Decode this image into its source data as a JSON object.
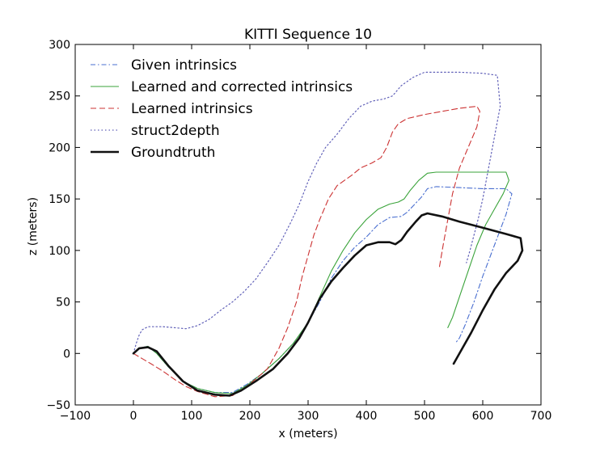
{
  "chart_data": {
    "type": "line",
    "title": "KITTI Sequence 10",
    "xlabel": "x (meters)",
    "ylabel": "z (meters)",
    "xlim": [
      -100,
      700
    ],
    "ylim": [
      -50,
      300
    ],
    "xticks": [
      -100,
      0,
      100,
      200,
      300,
      400,
      500,
      600,
      700
    ],
    "yticks": [
      -50,
      0,
      50,
      100,
      150,
      200,
      250,
      300
    ],
    "grid": false,
    "legend": "top-left",
    "series": [
      {
        "name": "Given intrinsics",
        "color": "#4a6fd0",
        "style": "dashdot",
        "width": 1.1,
        "points": [
          [
            0,
            0
          ],
          [
            10,
            5
          ],
          [
            25,
            7
          ],
          [
            40,
            0
          ],
          [
            60,
            -13
          ],
          [
            85,
            -27
          ],
          [
            110,
            -34
          ],
          [
            140,
            -38
          ],
          [
            170,
            -38
          ],
          [
            195,
            -30
          ],
          [
            220,
            -20
          ],
          [
            250,
            -5
          ],
          [
            275,
            10
          ],
          [
            300,
            30
          ],
          [
            320,
            50
          ],
          [
            340,
            73
          ],
          [
            360,
            90
          ],
          [
            380,
            103
          ],
          [
            400,
            113
          ],
          [
            420,
            125
          ],
          [
            440,
            132
          ],
          [
            460,
            133
          ],
          [
            470,
            137
          ],
          [
            480,
            143
          ],
          [
            495,
            152
          ],
          [
            505,
            160
          ],
          [
            520,
            162
          ],
          [
            560,
            161
          ],
          [
            600,
            160
          ],
          [
            640,
            160
          ],
          [
            650,
            155
          ],
          [
            640,
            135
          ],
          [
            620,
            105
          ],
          [
            600,
            75
          ],
          [
            585,
            50
          ],
          [
            570,
            28
          ],
          [
            560,
            15
          ],
          [
            553,
            10
          ]
        ]
      },
      {
        "name": "Learned and corrected intrinsics",
        "color": "#3aa33a",
        "style": "solid",
        "width": 1.1,
        "points": [
          [
            0,
            0
          ],
          [
            10,
            5
          ],
          [
            25,
            7
          ],
          [
            40,
            0
          ],
          [
            60,
            -13
          ],
          [
            85,
            -27
          ],
          [
            110,
            -34
          ],
          [
            140,
            -38
          ],
          [
            170,
            -39
          ],
          [
            195,
            -31
          ],
          [
            220,
            -20
          ],
          [
            250,
            -5
          ],
          [
            275,
            10
          ],
          [
            300,
            30
          ],
          [
            320,
            55
          ],
          [
            340,
            80
          ],
          [
            360,
            100
          ],
          [
            380,
            117
          ],
          [
            400,
            130
          ],
          [
            420,
            140
          ],
          [
            440,
            145
          ],
          [
            455,
            147
          ],
          [
            465,
            150
          ],
          [
            475,
            158
          ],
          [
            490,
            168
          ],
          [
            505,
            175
          ],
          [
            520,
            176
          ],
          [
            560,
            176
          ],
          [
            600,
            176
          ],
          [
            640,
            176
          ],
          [
            645,
            168
          ],
          [
            635,
            155
          ],
          [
            620,
            140
          ],
          [
            605,
            125
          ],
          [
            590,
            105
          ],
          [
            575,
            80
          ],
          [
            560,
            55
          ],
          [
            548,
            35
          ],
          [
            540,
            25
          ]
        ]
      },
      {
        "name": "Learned intrinsics",
        "color": "#cc3333",
        "style": "dashed",
        "width": 1.1,
        "points": [
          [
            0,
            0
          ],
          [
            15,
            -5
          ],
          [
            30,
            -10
          ],
          [
            50,
            -17
          ],
          [
            70,
            -25
          ],
          [
            90,
            -32
          ],
          [
            110,
            -37
          ],
          [
            140,
            -42
          ],
          [
            170,
            -41
          ],
          [
            190,
            -34
          ],
          [
            210,
            -25
          ],
          [
            230,
            -15
          ],
          [
            250,
            5
          ],
          [
            265,
            25
          ],
          [
            280,
            50
          ],
          [
            290,
            75
          ],
          [
            300,
            95
          ],
          [
            310,
            115
          ],
          [
            320,
            130
          ],
          [
            335,
            150
          ],
          [
            350,
            163
          ],
          [
            375,
            173
          ],
          [
            390,
            180
          ],
          [
            410,
            185
          ],
          [
            425,
            190
          ],
          [
            435,
            200
          ],
          [
            445,
            215
          ],
          [
            455,
            223
          ],
          [
            470,
            228
          ],
          [
            500,
            232
          ],
          [
            530,
            235
          ],
          [
            560,
            238
          ],
          [
            590,
            240
          ],
          [
            595,
            235
          ],
          [
            590,
            220
          ],
          [
            575,
            200
          ],
          [
            560,
            180
          ],
          [
            548,
            155
          ],
          [
            540,
            130
          ],
          [
            532,
            105
          ],
          [
            525,
            82
          ]
        ]
      },
      {
        "name": "struct2depth",
        "color": "#6060b8",
        "style": "dotted",
        "width": 1.2,
        "points": [
          [
            0,
            0
          ],
          [
            5,
            10
          ],
          [
            10,
            18
          ],
          [
            15,
            23
          ],
          [
            25,
            26
          ],
          [
            50,
            26
          ],
          [
            70,
            25
          ],
          [
            90,
            24
          ],
          [
            110,
            27
          ],
          [
            130,
            33
          ],
          [
            150,
            42
          ],
          [
            170,
            50
          ],
          [
            190,
            60
          ],
          [
            210,
            72
          ],
          [
            230,
            88
          ],
          [
            250,
            105
          ],
          [
            270,
            127
          ],
          [
            285,
            145
          ],
          [
            300,
            167
          ],
          [
            315,
            185
          ],
          [
            330,
            200
          ],
          [
            350,
            213
          ],
          [
            370,
            228
          ],
          [
            390,
            240
          ],
          [
            410,
            245
          ],
          [
            430,
            247
          ],
          [
            445,
            250
          ],
          [
            460,
            260
          ],
          [
            480,
            268
          ],
          [
            500,
            273
          ],
          [
            520,
            273
          ],
          [
            560,
            273
          ],
          [
            600,
            272
          ],
          [
            625,
            270
          ],
          [
            630,
            240
          ],
          [
            620,
            210
          ],
          [
            610,
            180
          ],
          [
            600,
            150
          ],
          [
            592,
            130
          ],
          [
            585,
            115
          ],
          [
            578,
            100
          ],
          [
            572,
            88
          ]
        ]
      },
      {
        "name": "Groundtruth",
        "color": "#111111",
        "style": "solid",
        "width": 2.6,
        "points": [
          [
            0,
            0
          ],
          [
            10,
            5
          ],
          [
            25,
            6
          ],
          [
            40,
            2
          ],
          [
            60,
            -12
          ],
          [
            85,
            -27
          ],
          [
            110,
            -36
          ],
          [
            140,
            -40
          ],
          [
            165,
            -41
          ],
          [
            185,
            -36
          ],
          [
            210,
            -27
          ],
          [
            240,
            -15
          ],
          [
            265,
            0
          ],
          [
            285,
            15
          ],
          [
            300,
            30
          ],
          [
            320,
            53
          ],
          [
            340,
            70
          ],
          [
            360,
            83
          ],
          [
            380,
            95
          ],
          [
            400,
            105
          ],
          [
            420,
            108
          ],
          [
            440,
            108
          ],
          [
            450,
            106
          ],
          [
            460,
            110
          ],
          [
            470,
            118
          ],
          [
            485,
            128
          ],
          [
            495,
            134
          ],
          [
            505,
            136
          ],
          [
            530,
            133
          ],
          [
            560,
            128
          ],
          [
            600,
            122
          ],
          [
            640,
            116
          ],
          [
            665,
            112
          ],
          [
            668,
            100
          ],
          [
            660,
            90
          ],
          [
            640,
            78
          ],
          [
            620,
            62
          ],
          [
            600,
            42
          ],
          [
            580,
            20
          ],
          [
            565,
            5
          ],
          [
            550,
            -10
          ]
        ]
      }
    ]
  }
}
